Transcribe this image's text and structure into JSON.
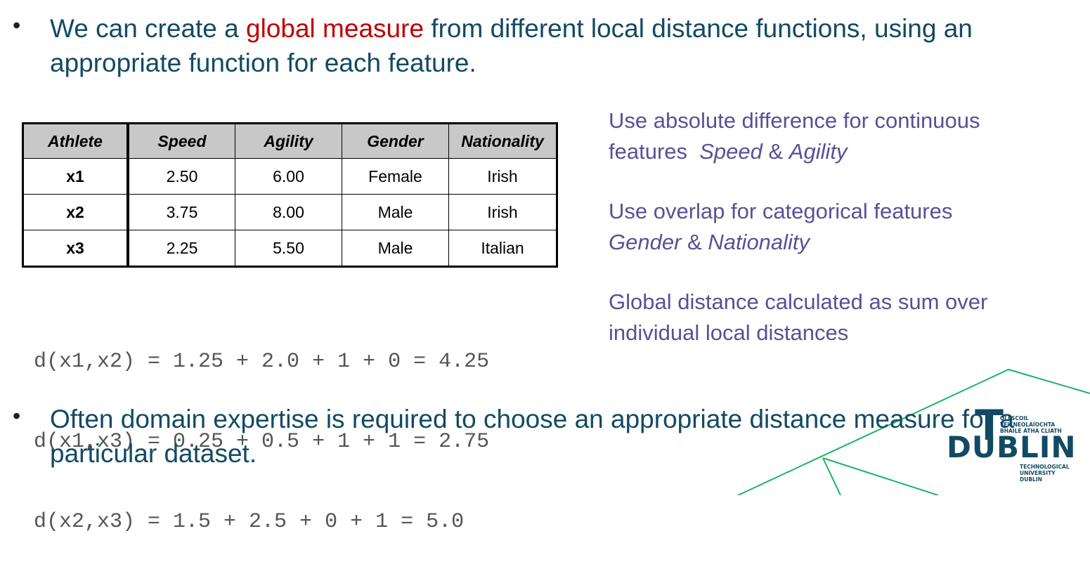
{
  "bullets": {
    "first": {
      "text_before": "We can create a ",
      "highlight": "global measure",
      "text_after": " from different local distance functions, using an appropriate function for each feature."
    },
    "second": {
      "text": "Often domain expertise is required to choose an appropriate distance measure for a particular dataset."
    },
    "marker": "•"
  },
  "table": {
    "headers": [
      "Athlete",
      "Speed",
      "Agility",
      "Gender",
      "Nationality"
    ],
    "rows": [
      [
        "x1",
        "2.50",
        "6.00",
        "Female",
        "Irish"
      ],
      [
        "x2",
        "3.75",
        "8.00",
        "Male",
        "Irish"
      ],
      [
        "x3",
        "2.25",
        "5.50",
        "Male",
        "Italian"
      ]
    ]
  },
  "equations": [
    "d(x1,x2) = 1.25 + 2.0 + 1 + 0 = 4.25",
    "d(x1,x3) = 0.25 + 0.5 + 1 + 1 = 2.75",
    "d(x2,x3) = 1.5 + 2.5 + 0 + 1 = 5.0"
  ],
  "notes": {
    "continuous": {
      "text": "Use absolute difference for continuous features",
      "emph_a": "Speed",
      "amp": " & ",
      "emph_b": "Agility"
    },
    "categorical": {
      "text": "Use overlap for categorical features",
      "emph_a": "Gender",
      "amp": " & ",
      "emph_b": "Nationality"
    },
    "global": {
      "text": "Global distance calculated as sum over individual local distances"
    }
  },
  "logo": {
    "top_line_1": "OLLSCOIL TEICNEOLAÍOCHTA",
    "top_line_2": "BHAILE ÁTHA CLIATH",
    "letter_t": "T",
    "word": "DUBLIN",
    "bottom_line_1": "TECHNOLOGICAL",
    "bottom_line_2": "UNIVERSITY DUBLIN"
  },
  "colors": {
    "title_text": "#124a63",
    "highlight": "#c00000",
    "notes_text": "#5b4f96",
    "equation_text": "#555555",
    "decor_line": "#1db26a",
    "table_header_bg": "#c8c8c8"
  }
}
